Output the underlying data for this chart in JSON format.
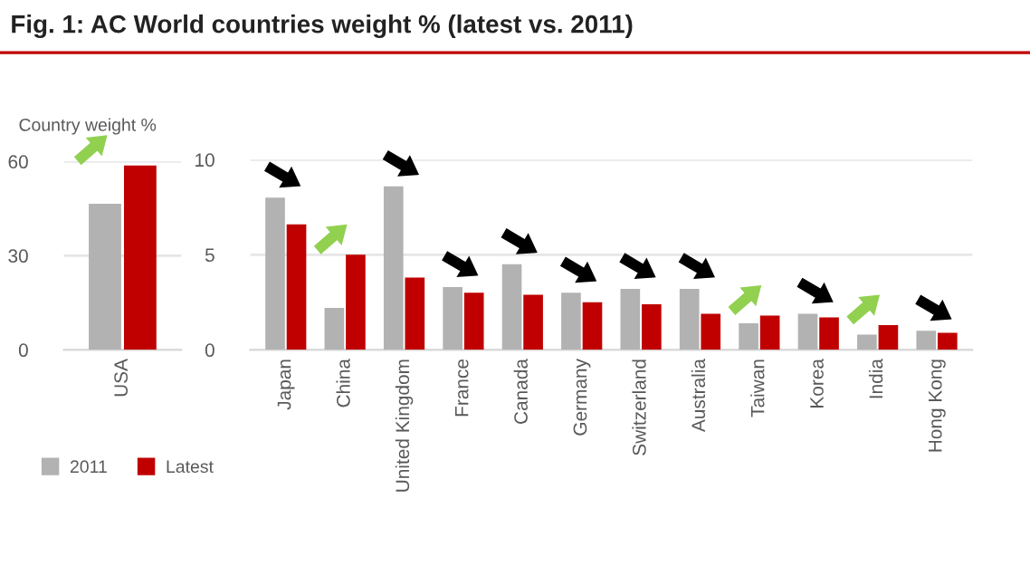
{
  "chart_data": [
    {
      "type": "bar",
      "title": "Fig. 1: AC World countries weight % (latest vs. 2011)",
      "ylabel": "Country weight %",
      "categories": [
        "USA"
      ],
      "series": [
        {
          "name": "2011",
          "color": "#b2b2b2",
          "values": [
            46.5
          ]
        },
        {
          "name": "Latest",
          "color": "#c00000",
          "values": [
            58.7
          ]
        }
      ],
      "ylim": [
        0,
        60
      ],
      "yticks": [
        0,
        30,
        60
      ],
      "grid": "y",
      "legend": "bottom left"
    },
    {
      "type": "bar",
      "categories": [
        "Japan",
        "China",
        "United Kingdom",
        "France",
        "Canada",
        "Germany",
        "Switzerland",
        "Australia",
        "Taiwan",
        "Korea",
        "India",
        "Hong Kong"
      ],
      "series": [
        {
          "color": "#b2b2b2",
          "values": [
            8.0,
            2.2,
            8.6,
            3.3,
            4.5,
            3.0,
            3.2,
            3.2,
            1.4,
            1.9,
            0.8,
            1.0
          ]
        },
        {
          "color": "#c00000",
          "values": [
            6.6,
            5.0,
            3.8,
            3.0,
            2.9,
            2.5,
            2.4,
            1.9,
            1.8,
            1.7,
            1.3,
            0.9
          ]
        }
      ],
      "ylim": [
        0,
        10
      ],
      "yticks": [
        0,
        5,
        10
      ],
      "grid": "y"
    }
  ]
}
